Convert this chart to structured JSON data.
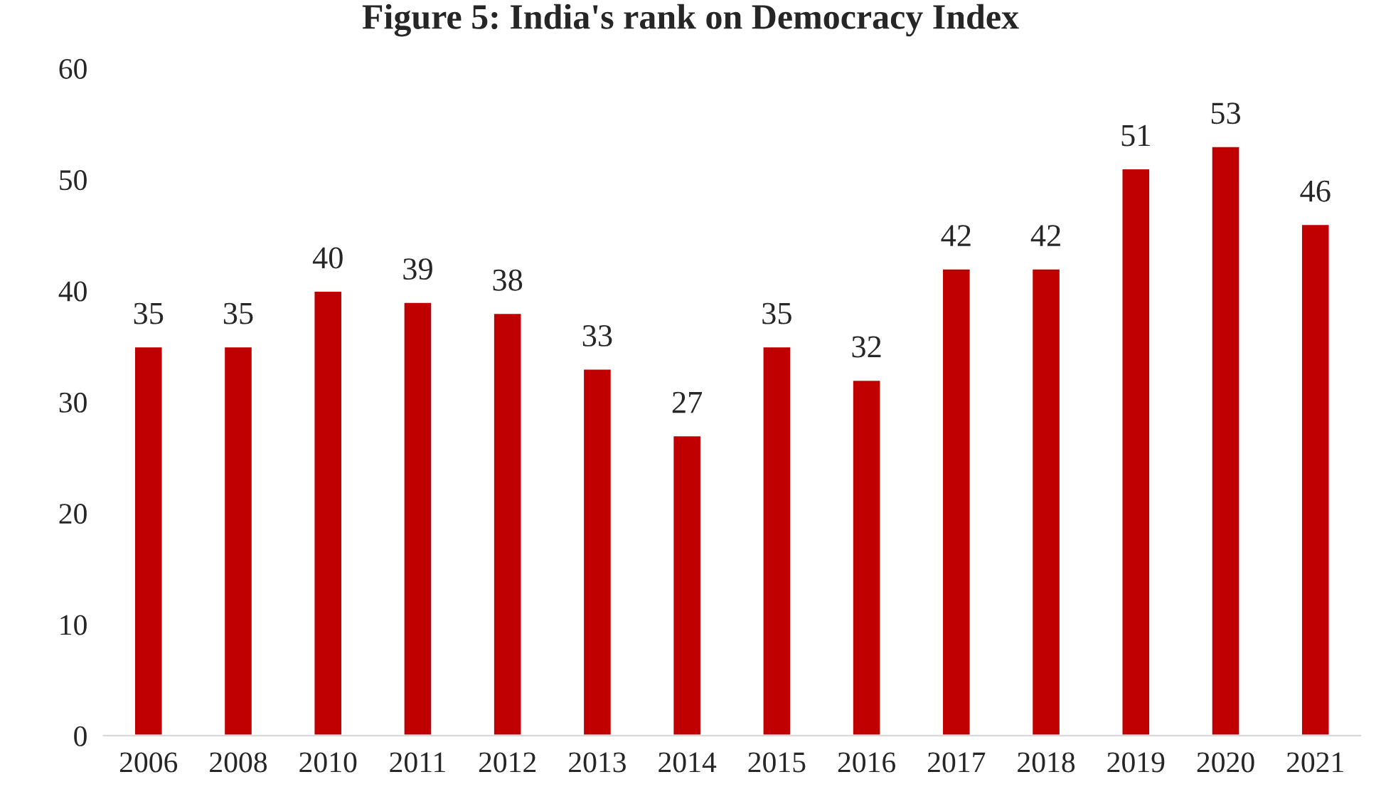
{
  "chart_data": {
    "type": "bar",
    "title": "Figure 5: India's rank on Democracy Index",
    "categories": [
      "2006",
      "2008",
      "2010",
      "2011",
      "2012",
      "2013",
      "2014",
      "2015",
      "2016",
      "2017",
      "2018",
      "2019",
      "2020",
      "2021"
    ],
    "values": [
      35,
      35,
      40,
      39,
      38,
      33,
      27,
      35,
      32,
      42,
      42,
      51,
      53,
      46
    ],
    "color": "#c00000",
    "ylim": [
      0,
      60
    ],
    "yticks": [
      0,
      10,
      20,
      30,
      40,
      50,
      60
    ],
    "grid": false,
    "data_labels": true
  }
}
